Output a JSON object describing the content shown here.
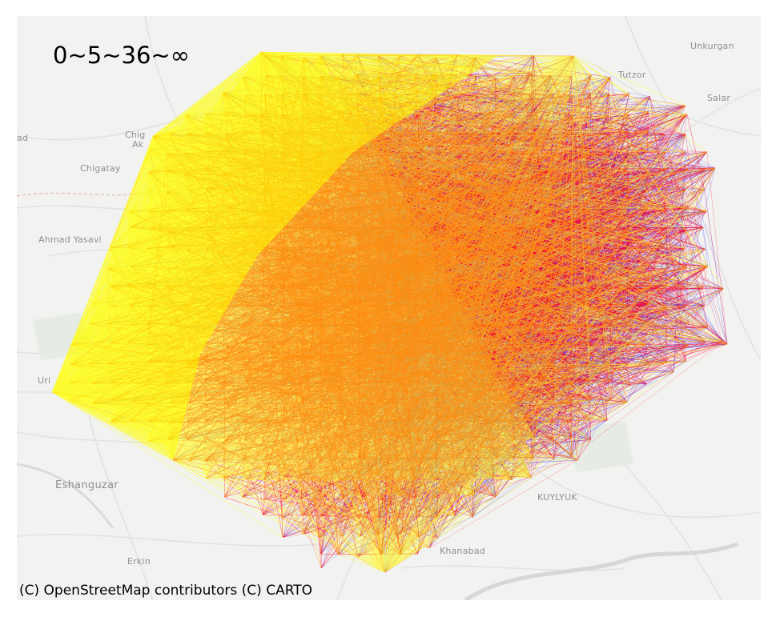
{
  "map": {
    "legend_label": "0~5~36~∞",
    "attribution": "(C) OpenStreetMap contributors (C) CARTO",
    "places": {
      "unkurgan": "Unkurgan",
      "tutzor": "Tutzor",
      "salar": "Salar",
      "ad": "ad",
      "chig": "Chig",
      "ak": "Ak",
      "chigatay": "Chigatay",
      "ahmad": "Ahmad Yasavi",
      "uri": "Uri",
      "eshanguzar": "Eshanguzar",
      "kuylyuk": "KUYLYUK",
      "khanabad": "Khanabad",
      "erkin": "Erkin"
    },
    "flow_colors": {
      "near": "#ffff00",
      "mid": "#ff0022",
      "far": "#1a1aff"
    },
    "flow_class_bounds": [
      "0",
      "5",
      "36",
      "∞"
    ]
  }
}
